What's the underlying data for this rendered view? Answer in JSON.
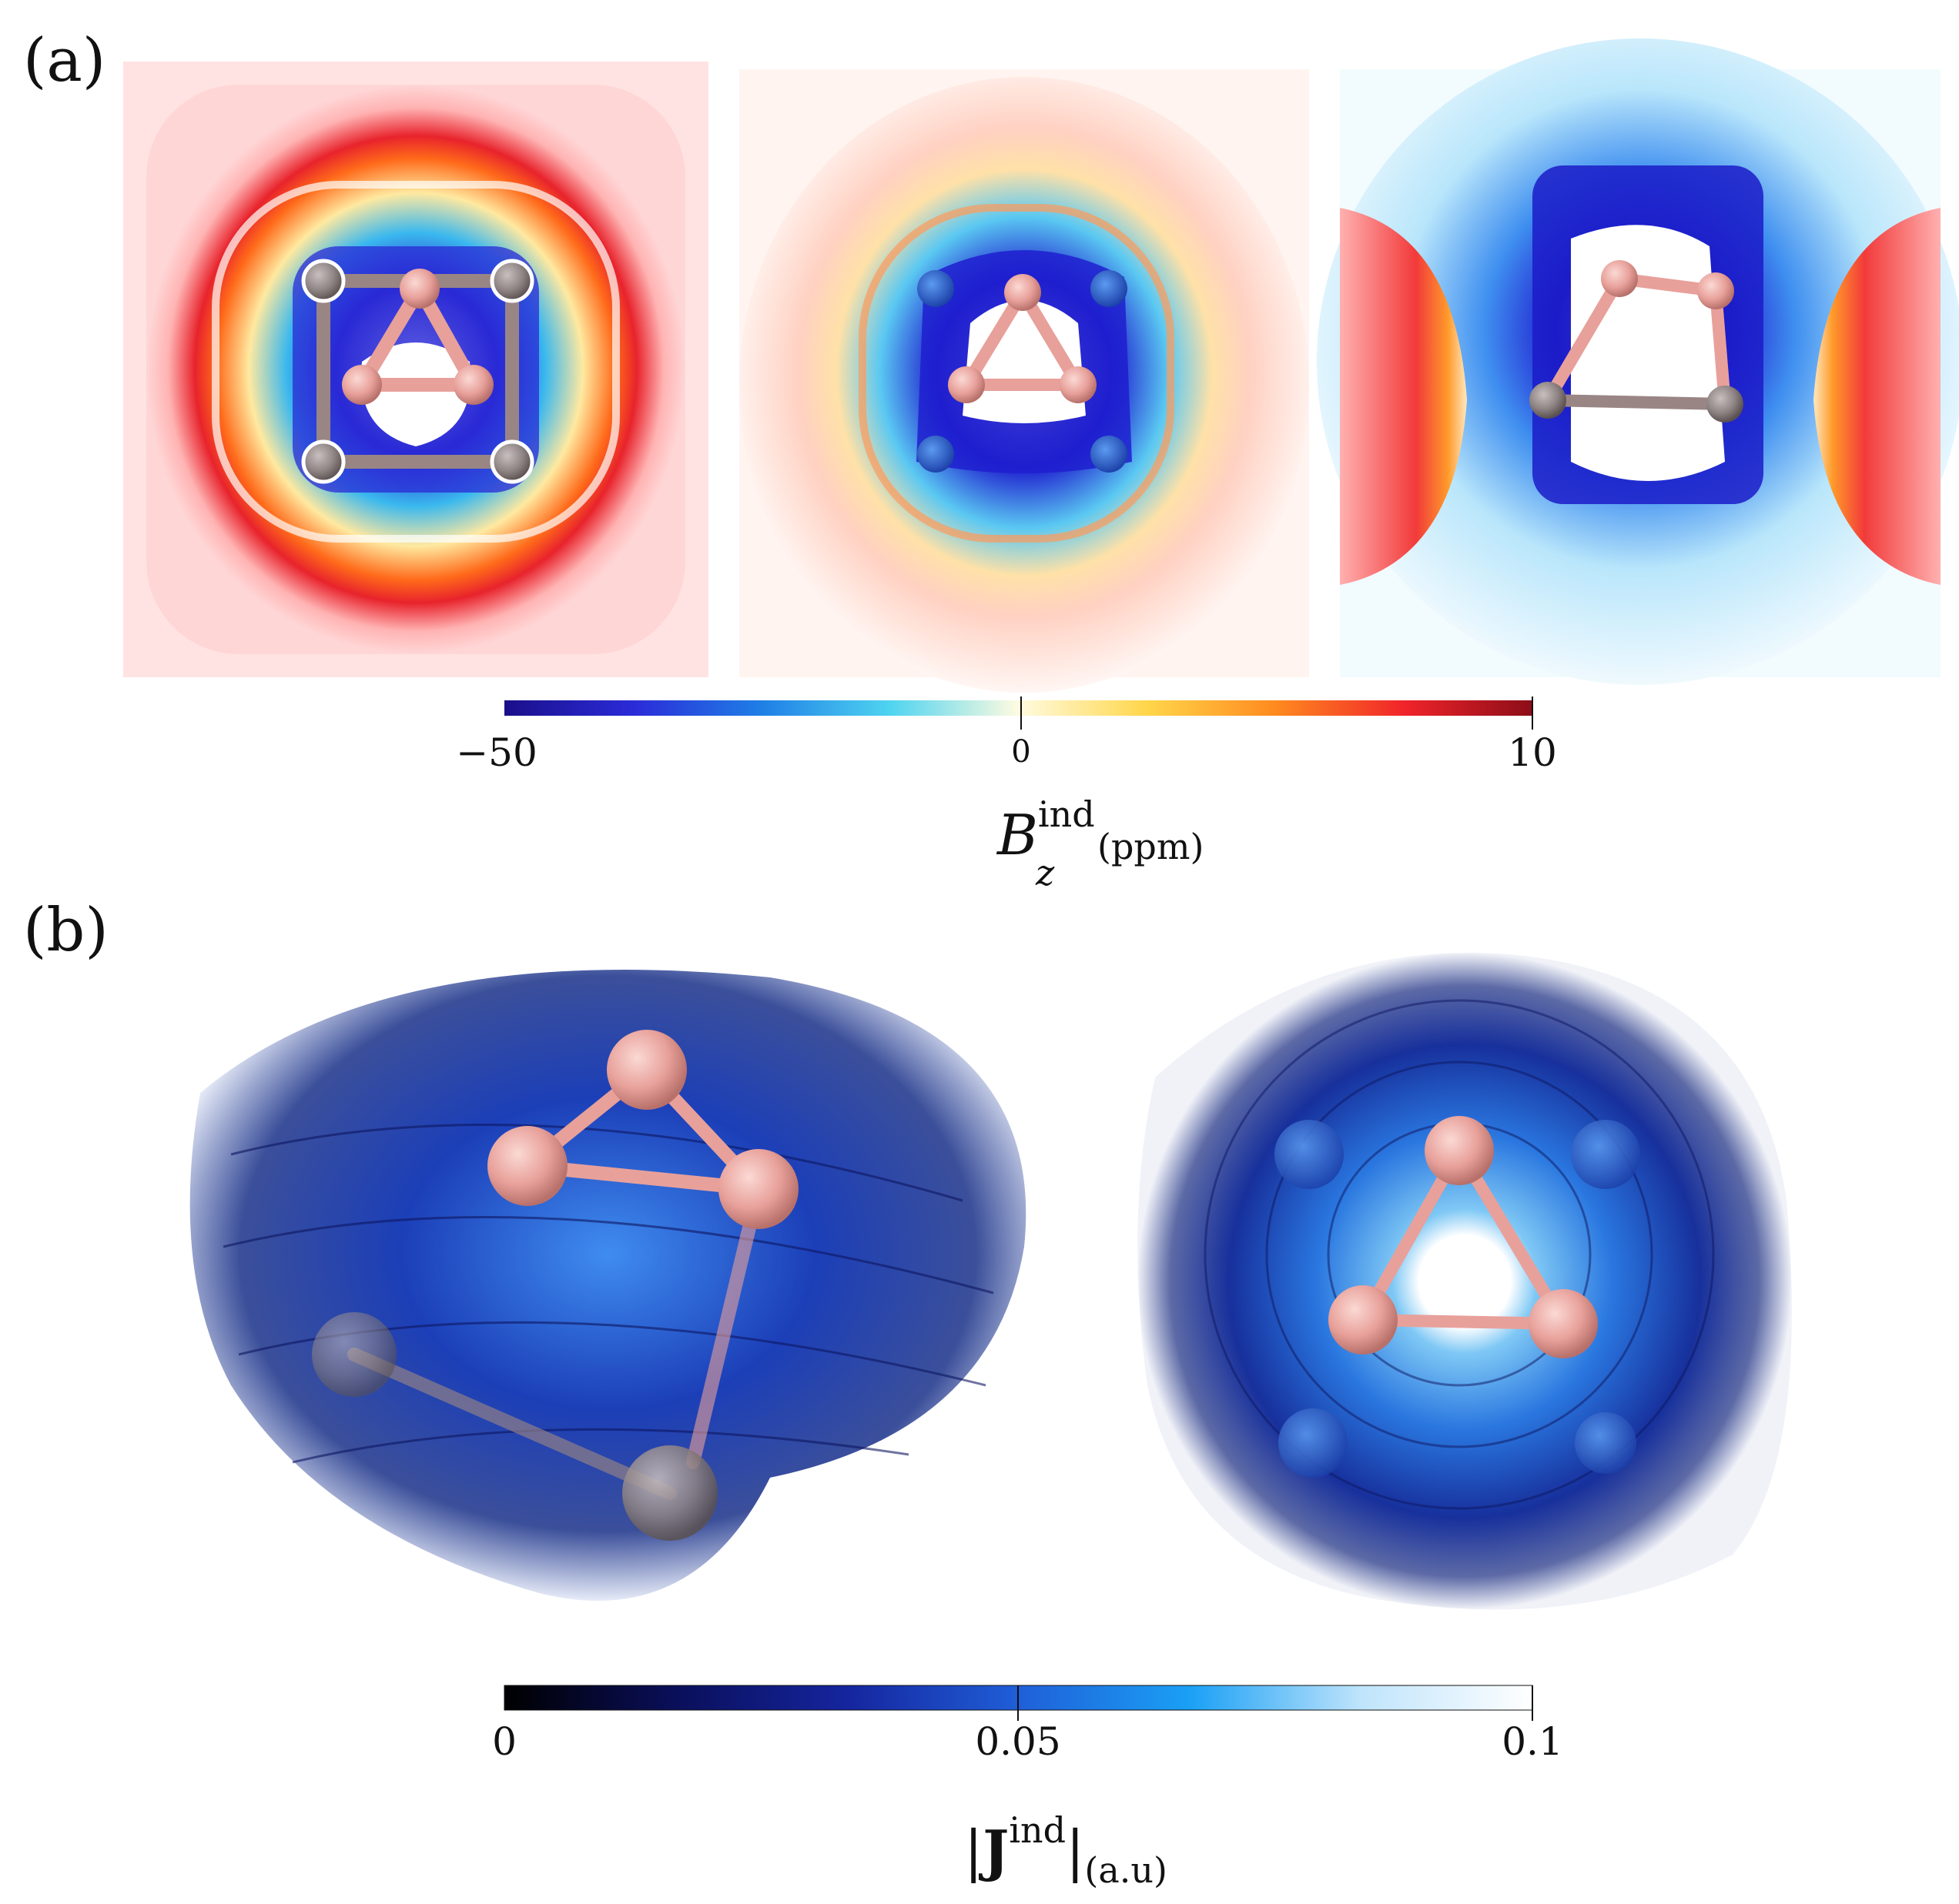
{
  "panel_a": {
    "label": "(a)",
    "colorbar": {
      "ticks": [
        "−50",
        "0",
        "10"
      ],
      "title_main": "B",
      "title_sup": "ind",
      "title_sub": "z",
      "title_unit": "(ppm)",
      "range": [
        -50,
        10
      ],
      "colors": [
        "#1a0f8a",
        "#2b2bd8",
        "#1f7fe6",
        "#4fd4f0",
        "#fffbe0",
        "#ffd64a",
        "#ff8a1f",
        "#f0242a",
        "#8c0d18"
      ]
    }
  },
  "panel_b": {
    "label": "(b)",
    "colorbar": {
      "ticks": [
        "0",
        "0.05",
        "0.1"
      ],
      "title_main": "J",
      "title_sup": "ind",
      "title_unit": "(a.u)",
      "range": [
        0,
        0.1
      ],
      "colors": [
        "#000000",
        "#0a0f5a",
        "#15259e",
        "#1f5fd8",
        "#1aa0f5",
        "#bfe4fb",
        "#ffffff"
      ]
    }
  },
  "atom_colors": {
    "boron": "#e8a09a",
    "metal": "#8f8484"
  }
}
